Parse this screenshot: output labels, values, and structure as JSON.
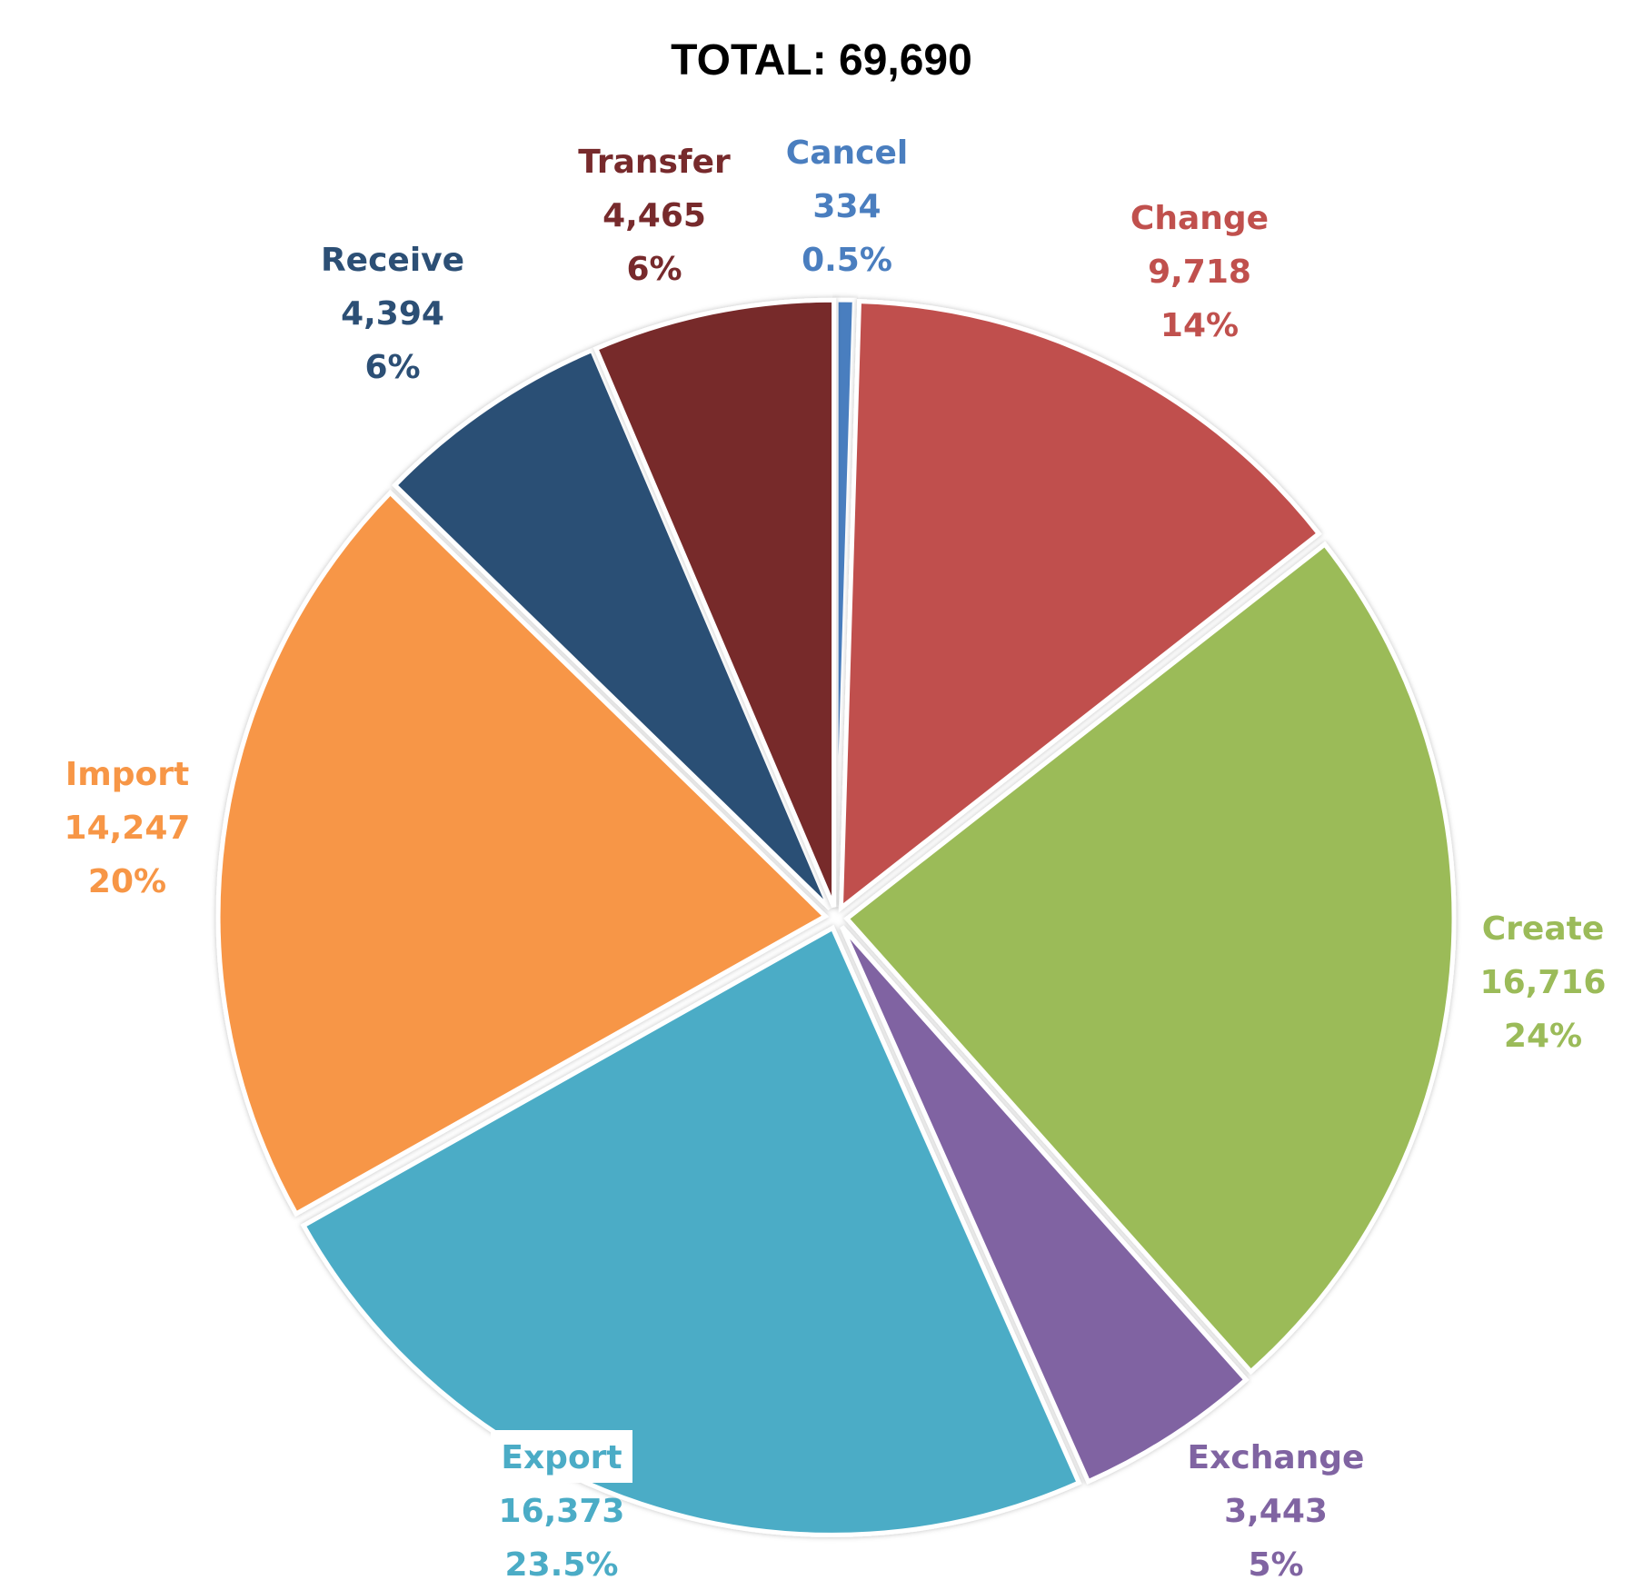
{
  "chart_data": {
    "type": "pie",
    "title": "TOTAL: 69,690",
    "slices": [
      {
        "label": "Cancel",
        "value": 334,
        "value_label": "334",
        "percent_label": "0.5%",
        "color": "#4a7ebf"
      },
      {
        "label": "Change",
        "value": 9718,
        "value_label": "9,718",
        "percent_label": "14%",
        "color": "#c0504d"
      },
      {
        "label": "Create",
        "value": 16716,
        "value_label": "16,716",
        "percent_label": "24%",
        "color": "#9bbb59"
      },
      {
        "label": "Exchange",
        "value": 3443,
        "value_label": "3,443",
        "percent_label": "5%",
        "color": "#8064a2"
      },
      {
        "label": "Export",
        "value": 16373,
        "value_label": "16,373",
        "percent_label": "23.5%",
        "color": "#4bacc6"
      },
      {
        "label": "Import",
        "value": 14247,
        "value_label": "14,247",
        "percent_label": "20%",
        "color": "#f79646"
      },
      {
        "label": "Receive",
        "value": 4394,
        "value_label": "4,394",
        "percent_label": "6%",
        "color": "#2c4f75"
      },
      {
        "label": "Transfer",
        "value": 4465,
        "value_label": "4,465",
        "percent_label": "6%",
        "color": "#772a2c"
      }
    ]
  }
}
